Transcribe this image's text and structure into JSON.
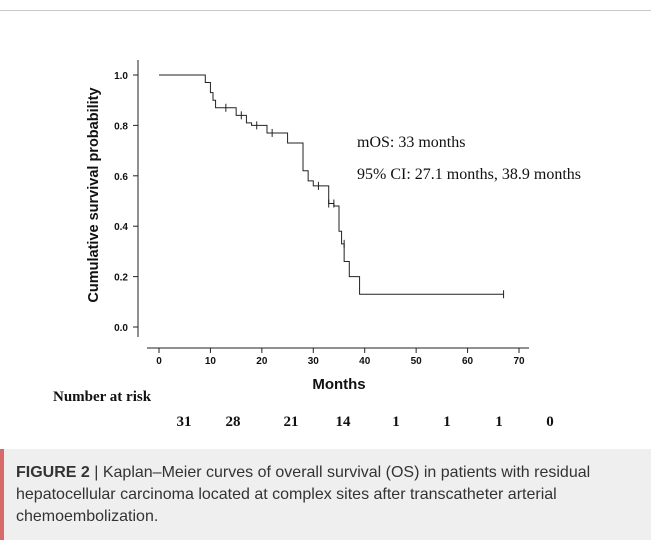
{
  "chart_data": {
    "type": "line",
    "subtype": "kaplan-meier",
    "xlabel": "Months",
    "ylabel": "Cumulative survival probability",
    "xlim": [
      0,
      70
    ],
    "ylim": [
      0.0,
      1.0
    ],
    "xticks": [
      "0",
      "10",
      "20",
      "30",
      "40",
      "50",
      "60",
      "70"
    ],
    "yticks": [
      "0.0",
      "0.2",
      "0.4",
      "0.6",
      "0.8",
      "1.0"
    ],
    "grid": false,
    "annotations": [
      "mOS: 33 months",
      "95% CI: 27.1 months, 38.9 months"
    ],
    "series": [
      {
        "steps": [
          [
            0,
            1.0
          ],
          [
            9,
            0.97
          ],
          [
            10,
            0.93
          ],
          [
            10.5,
            0.9
          ],
          [
            11,
            0.87
          ],
          [
            15,
            0.84
          ],
          [
            17,
            0.81
          ],
          [
            18,
            0.8
          ],
          [
            21,
            0.77
          ],
          [
            25,
            0.73
          ],
          [
            28,
            0.62
          ],
          [
            29,
            0.58
          ],
          [
            30,
            0.56
          ],
          [
            33,
            0.49
          ],
          [
            34,
            0.48
          ],
          [
            35,
            0.38
          ],
          [
            35.5,
            0.33
          ],
          [
            36,
            0.26
          ],
          [
            37,
            0.2
          ],
          [
            39,
            0.13
          ],
          [
            67,
            0.13
          ]
        ],
        "censored": [
          [
            13,
            0.87
          ],
          [
            16,
            0.84
          ],
          [
            19,
            0.8
          ],
          [
            22,
            0.77
          ],
          [
            31,
            0.56
          ],
          [
            33,
            0.49
          ],
          [
            34,
            0.49
          ],
          [
            36,
            0.33
          ],
          [
            67,
            0.13
          ]
        ]
      }
    ]
  },
  "risk_table": {
    "title": "Number at risk",
    "times": [
      0,
      10,
      20,
      30,
      40,
      50,
      60,
      70
    ],
    "counts": [
      "31",
      "28",
      "21",
      "14",
      "1",
      "1",
      "1",
      "0"
    ]
  },
  "caption": {
    "label": "FIGURE 2",
    "separator": "|",
    "text": "Kaplan–Meier curves of overall survival (OS) in patients with residual hepatocellular carcinoma located at complex sites after transcatheter arterial chemoembolization."
  }
}
